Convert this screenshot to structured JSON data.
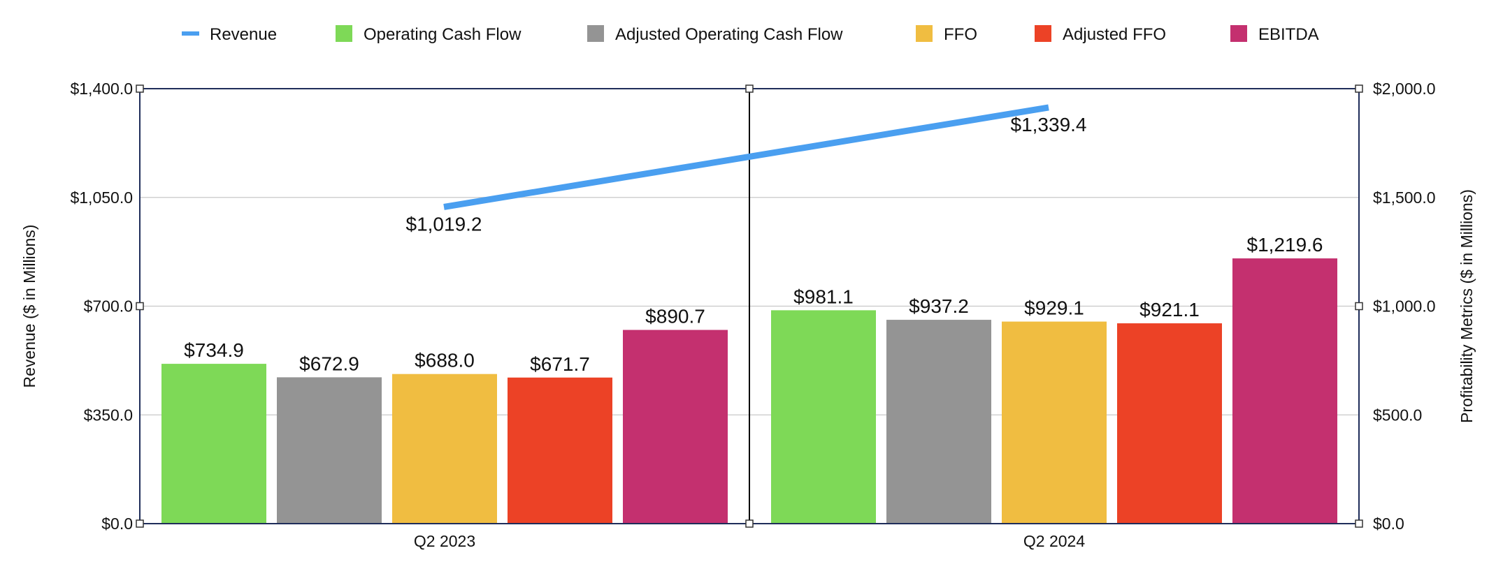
{
  "chart_data": {
    "type": "bar",
    "categories": [
      "Q2 2023",
      "Q2 2024"
    ],
    "series": [
      {
        "name": "Operating Cash Flow",
        "axis": "right",
        "color": "#7ed957",
        "values": [
          734.9,
          981.1
        ],
        "labels": [
          "$734.9",
          "$981.1"
        ]
      },
      {
        "name": "Adjusted Operating Cash Flow",
        "axis": "right",
        "color": "#949494",
        "values": [
          672.9,
          937.2
        ],
        "labels": [
          "$672.9",
          "$937.2"
        ]
      },
      {
        "name": "FFO",
        "axis": "right",
        "color": "#f0bd41",
        "values": [
          688.0,
          929.1
        ],
        "labels": [
          "$688.0",
          "$929.1"
        ]
      },
      {
        "name": "Adjusted FFO",
        "axis": "right",
        "color": "#ec4226",
        "values": [
          671.7,
          921.1
        ],
        "labels": [
          "$671.7",
          "$921.1"
        ]
      },
      {
        "name": "EBITDA",
        "axis": "right",
        "color": "#c4306f",
        "values": [
          890.7,
          1219.6
        ],
        "labels": [
          "$890.7",
          "$1,219.6"
        ]
      }
    ],
    "line_series": {
      "name": "Revenue",
      "type": "line",
      "axis": "left",
      "color": "#4a9ff0",
      "values": [
        1019.2,
        1339.4
      ],
      "labels": [
        "$1,019.2",
        "$1,339.4"
      ]
    },
    "legend_order": [
      "Revenue",
      "Operating Cash Flow",
      "Adjusted Operating Cash Flow",
      "FFO",
      "Adjusted FFO",
      "EBITDA"
    ],
    "legend_position": "top",
    "y_left": {
      "label": "Revenue ($ in Millions)",
      "min": 0,
      "max": 1400,
      "ticks": [
        0,
        350,
        700,
        1050,
        1400
      ],
      "tick_labels": [
        "$0.0",
        "$350.0",
        "$700.0",
        "$1,050.0",
        "$1,400.0"
      ]
    },
    "y_right": {
      "label": "Profitability Metrics ($ in Millions)",
      "min": 0,
      "max": 2000,
      "ticks": [
        0,
        500,
        1000,
        1500,
        2000
      ],
      "tick_labels": [
        "$0.0",
        "$500.0",
        "$1,000.0",
        "$1,500.0",
        "$2,000.0"
      ]
    },
    "grid": true,
    "colors": {
      "frame": "#1f2d5a",
      "grid": "#c8c8c8",
      "divider": "#000000"
    }
  }
}
